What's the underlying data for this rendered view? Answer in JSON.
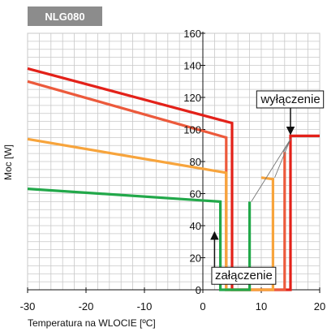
{
  "chart_data": {
    "type": "line",
    "title": "NLG080",
    "xlabel": "Temperatura na WLOCIE  [ºC]",
    "ylabel": "Moc [W]",
    "xlim": [
      -30,
      20
    ],
    "ylim": [
      0,
      160
    ],
    "x_ticks": [
      "-30",
      "-20",
      "-10",
      "0",
      "10",
      "20"
    ],
    "y_ticks": [
      "0",
      "20",
      "40",
      "60",
      "80",
      "100",
      "120",
      "140",
      "160"
    ],
    "grid": true,
    "colors": {
      "badge": "#8c8c8c",
      "grid": "#c8c8c8",
      "red": "#e32119",
      "red_orange": "#ec5a3c",
      "orange": "#f7a43c",
      "green": "#22a84a"
    },
    "series": [
      {
        "color_key": "red",
        "x": [
          -30,
          5,
          5,
          15,
          15,
          20
        ],
        "y": [
          138,
          104,
          0,
          0,
          96,
          96
        ]
      },
      {
        "color_key": "red_orange",
        "x": [
          -30,
          4,
          4,
          14,
          14
        ],
        "y": [
          130,
          95,
          0,
          0,
          86
        ]
      },
      {
        "color_key": "orange",
        "x": [
          -30,
          4,
          4,
          12,
          12,
          10
        ],
        "y": [
          94,
          73,
          0,
          0,
          69,
          70
        ]
      },
      {
        "color_key": "green",
        "x": [
          -30,
          3,
          3,
          8,
          8
        ],
        "y": [
          63,
          55,
          0,
          0,
          55
        ]
      }
    ],
    "annotations": [
      {
        "label": "wyłączenie",
        "at": [
          15,
          119
        ],
        "arrow_to": [
          15,
          97
        ]
      },
      {
        "label": "załączenie",
        "at": [
          7,
          9
        ],
        "arrow_to": [
          2,
          36
        ]
      }
    ]
  }
}
